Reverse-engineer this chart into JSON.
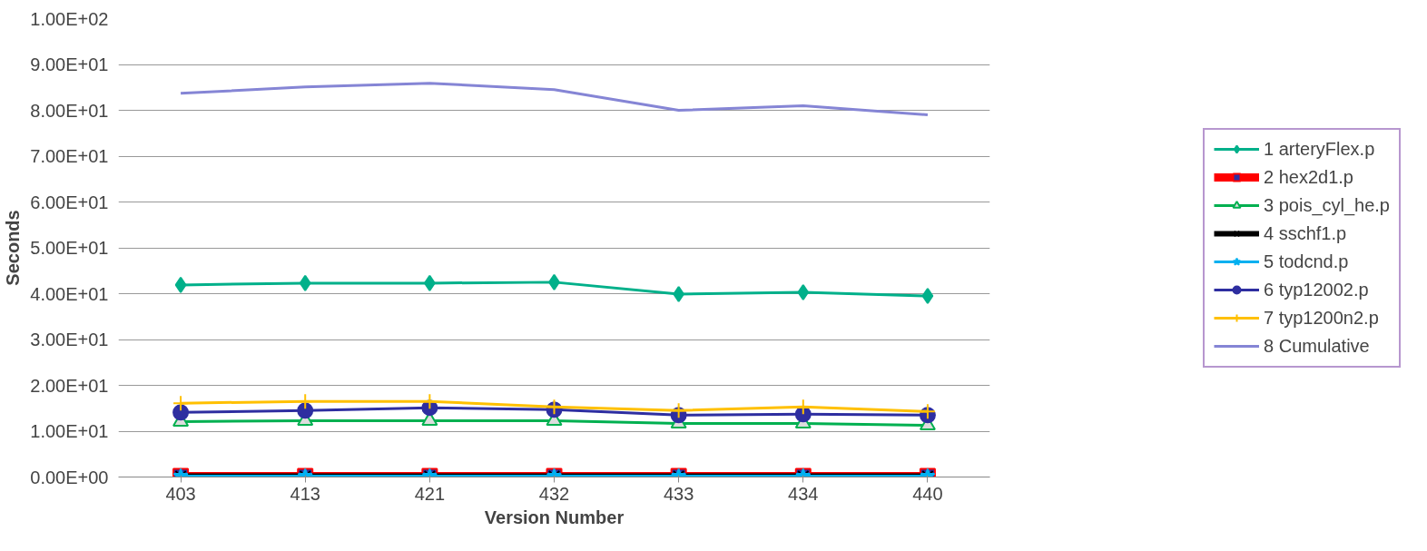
{
  "chart_data": {
    "type": "line",
    "xlabel": "Version Number",
    "ylabel": "Seconds",
    "categories": [
      "403",
      "413",
      "421",
      "432",
      "433",
      "434",
      "440"
    ],
    "series": [
      {
        "name": "1 arteryFlex.p",
        "color": "#00b08a",
        "marker": "diamond",
        "values": [
          41.9,
          42.3,
          42.3,
          42.5,
          39.9,
          40.3,
          39.5
        ]
      },
      {
        "name": "2 hex2d1.p",
        "color": "#ff0000",
        "marker": "square",
        "values": [
          0.2,
          0.2,
          0.2,
          0.2,
          0.2,
          0.2,
          0.2
        ]
      },
      {
        "name": "3 pois_cyl_he.p",
        "color": "#00b050",
        "marker": "triangle",
        "values": [
          12.1,
          12.3,
          12.3,
          12.3,
          11.7,
          11.7,
          11.3
        ]
      },
      {
        "name": "4 sschf1.p",
        "color": "#000000",
        "marker": "x",
        "values": [
          0.2,
          0.2,
          0.2,
          0.2,
          0.2,
          0.2,
          0.2
        ]
      },
      {
        "name": "5 todcnd.p",
        "color": "#00b0f0",
        "marker": "star",
        "values": [
          0.2,
          0.2,
          0.2,
          0.2,
          0.2,
          0.2,
          0.2
        ]
      },
      {
        "name": "6 typ12002.p",
        "color": "#2e2ea0",
        "marker": "circle",
        "values": [
          14.1,
          14.5,
          15.1,
          14.7,
          13.5,
          13.7,
          13.5
        ]
      },
      {
        "name": "7 typ1200n2.p",
        "color": "#ffc000",
        "marker": "cross",
        "values": [
          16.1,
          16.5,
          16.5,
          15.3,
          14.5,
          15.3,
          14.3
        ]
      },
      {
        "name": "8 Cumulative",
        "color": "#8585d5",
        "marker": "none",
        "values": [
          83.7,
          85.1,
          85.9,
          84.5,
          80.0,
          81.0,
          79.0
        ]
      }
    ],
    "ylim": [
      0,
      100
    ],
    "yticks": [
      {
        "value": 0,
        "label": "0.00E+00"
      },
      {
        "value": 10,
        "label": "1.00E+01"
      },
      {
        "value": 20,
        "label": "2.00E+01"
      },
      {
        "value": 30,
        "label": "3.00E+01"
      },
      {
        "value": 40,
        "label": "4.00E+01"
      },
      {
        "value": 50,
        "label": "5.00E+01"
      },
      {
        "value": 60,
        "label": "6.00E+01"
      },
      {
        "value": 70,
        "label": "7.00E+01"
      },
      {
        "value": 80,
        "label": "8.00E+01"
      },
      {
        "value": 90,
        "label": "9.00E+01"
      },
      {
        "value": 100,
        "label": "1.00E+02"
      }
    ],
    "grid": "y",
    "legend": "right"
  }
}
